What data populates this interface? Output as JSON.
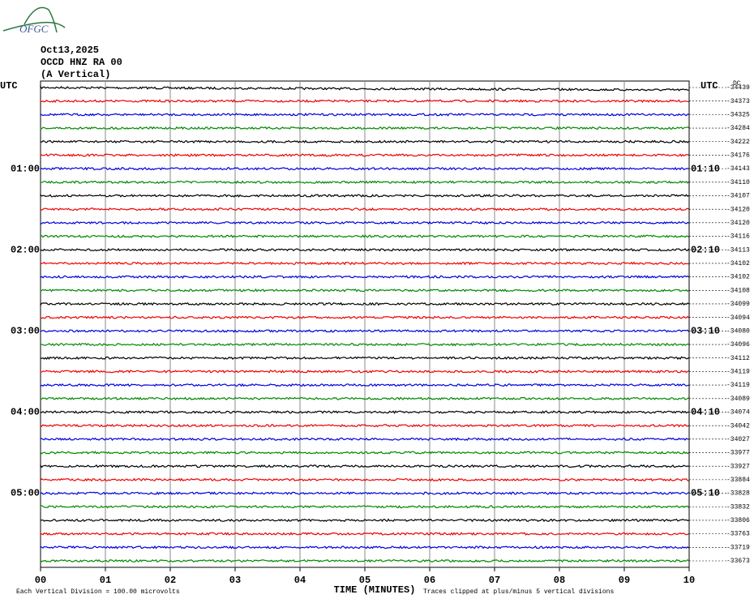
{
  "logo": "OFGC",
  "header": {
    "date": "Oct13,2025",
    "station": "OCCD HNZ RA 00",
    "component": "(A Vertical)"
  },
  "left_top": "UTC",
  "right_top": "UTC",
  "offset_header": "DC",
  "left_times": [
    "01:00",
    "02:00",
    "03:00",
    "04:00",
    "05:00"
  ],
  "right_times": [
    "01:10",
    "02:10",
    "03:10",
    "04:10",
    "05:10"
  ],
  "offsets": [
    -34439,
    -34373,
    -34325,
    -34284,
    -34222,
    -34176,
    -34143,
    -34110,
    -34107,
    -34120,
    -34120,
    -34116,
    -34113,
    -34102,
    -34102,
    -34108,
    -34099,
    -34094,
    -34080,
    -34096,
    -34112,
    -34119,
    -34119,
    -34089,
    -34074,
    -34042,
    -34027,
    -33977,
    -33927,
    -33884,
    -33828,
    -33832,
    -33806,
    -33763,
    -33719,
    -33673
  ],
  "x_ticks": [
    "00",
    "01",
    "02",
    "03",
    "04",
    "05",
    "06",
    "07",
    "08",
    "09",
    "10"
  ],
  "footer": {
    "division": "Each Vertical Division =  100.00 microvolts",
    "axis_title": "TIME (MINUTES)",
    "clip_note": "Traces clipped at plus/minus 5 vertical divisions"
  }
}
